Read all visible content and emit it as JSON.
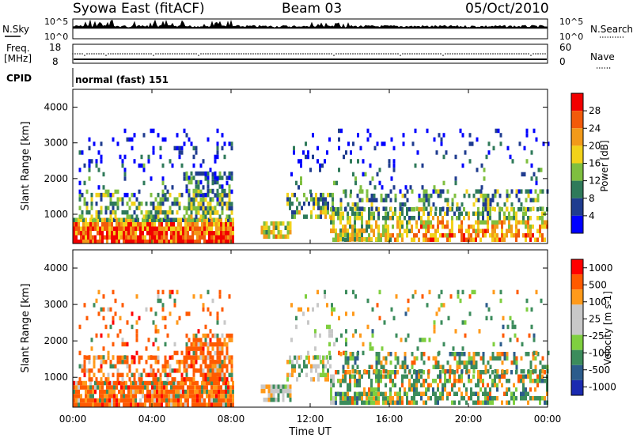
{
  "header": {
    "radar": "Syowa East (fitACF)",
    "beam": "Beam 03",
    "date": "05/Oct/2010"
  },
  "noise_panel": {
    "left_label": "N.Sky",
    "right_label": "N.Search",
    "left_ticks": [
      "10^5",
      "10^0"
    ],
    "right_ticks": [
      "10^5",
      "10^0"
    ]
  },
  "freq_panel": {
    "left_label_1": "Freq.",
    "left_label_2": "[MHz]",
    "right_label": "Nave",
    "left_ticks": [
      "18",
      "8"
    ],
    "right_ticks": [
      "60",
      "0"
    ]
  },
  "cpid": {
    "label": "CPID",
    "mode": "normal (fast) 151"
  },
  "colors": {
    "power_scale": [
      "#0000ff",
      "#1f3c8f",
      "#2f7a5a",
      "#7fbf3f",
      "#f2d21a",
      "#f29a1a",
      "#f25a0a",
      "#f20000"
    ],
    "velocity_scale": [
      "#ff0000",
      "#ff5a00",
      "#ff9a1a",
      "#c8c8c8",
      "#c8c8c8",
      "#7fcf3f",
      "#3c8c5c",
      "#2c5c8c",
      "#1a2ab0"
    ]
  },
  "chart_data": [
    {
      "type": "heatmap",
      "name": "power",
      "ylabel": "Slant Range [km]",
      "yticks": [
        "1000",
        "2000",
        "3000",
        "4000"
      ],
      "ylim": [
        180,
        4500
      ],
      "xlim_hours": [
        0,
        24
      ],
      "colorbar_label": "Power [dB]",
      "colorbar_ticks": [
        "4",
        "8",
        "12",
        "16",
        "20",
        "24",
        "28"
      ],
      "colorbar_range": [
        0,
        30
      ]
    },
    {
      "type": "heatmap",
      "name": "velocity",
      "ylabel": "Slant Range [km]",
      "yticks": [
        "1000",
        "2000",
        "3000",
        "4000"
      ],
      "ylim": [
        180,
        4500
      ],
      "xlim_hours": [
        0,
        24
      ],
      "xlabel": "Time UT",
      "xticks": [
        "00:00",
        "04:00",
        "08:00",
        "12:00",
        "16:00",
        "20:00",
        "00:00"
      ],
      "colorbar_label": "Velocity [m s-1]",
      "colorbar_ticks": [
        "1000",
        "500",
        "100",
        "25",
        "-25",
        "-100",
        "-500",
        "-1000"
      ]
    }
  ]
}
